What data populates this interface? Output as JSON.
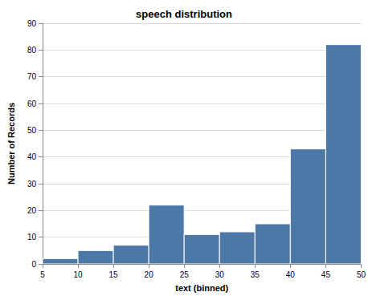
{
  "chart_data": {
    "type": "histogram",
    "title": "speech distribution",
    "x_label": "text (binned)",
    "y_label": "Number of Records",
    "bins": [
      5,
      10,
      15,
      20,
      25,
      30,
      35,
      40,
      45,
      50
    ],
    "values": [
      2,
      5,
      7,
      22,
      11,
      12,
      15,
      43,
      82
    ],
    "color": "#4c78a8",
    "xlim": [
      5,
      50
    ],
    "xticks": [
      5,
      10,
      15,
      20,
      25,
      30,
      35,
      40,
      45,
      50
    ],
    "ylim": [
      0,
      90
    ],
    "yticks": [
      0,
      10,
      20,
      30,
      40,
      50,
      60,
      70,
      80,
      90
    ],
    "grid": true
  }
}
